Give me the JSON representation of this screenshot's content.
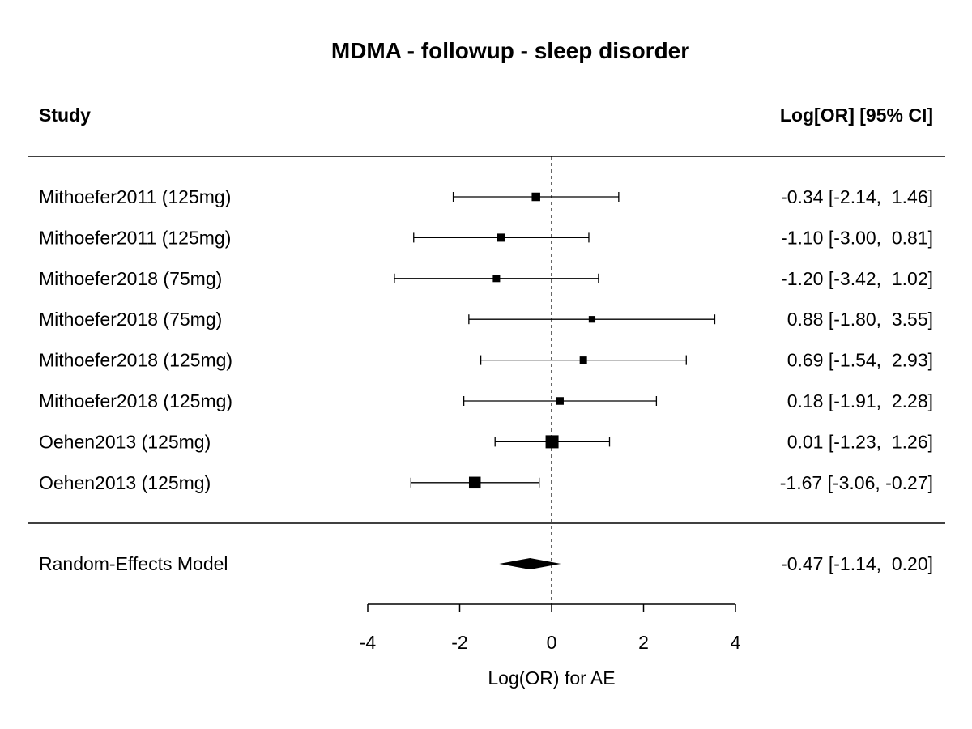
{
  "chart_data": {
    "type": "forest",
    "title": "MDMA - followup - sleep disorder",
    "left_header": "Study",
    "right_header": "Log[OR] [95% CI]",
    "xlabel": "Log(OR) for AE",
    "xticks": [
      -4,
      -2,
      0,
      2,
      4
    ],
    "xlim": [
      -4,
      4
    ],
    "reference_line": 0,
    "studies": [
      {
        "label": "Mithoefer2011 (125mg)",
        "estimate": -0.34,
        "lower": -2.14,
        "upper": 1.46,
        "ci_text": "-0.34 [-2.14,  1.46]",
        "weight": 0.45
      },
      {
        "label": "Mithoefer2011 (125mg)",
        "estimate": -1.1,
        "lower": -3.0,
        "upper": 0.81,
        "ci_text": "-1.10 [-3.00,  0.81]",
        "weight": 0.4
      },
      {
        "label": "Mithoefer2018 (75mg)",
        "estimate": -1.2,
        "lower": -3.42,
        "upper": 1.02,
        "ci_text": "-1.20 [-3.42,  1.02]",
        "weight": 0.3
      },
      {
        "label": "Mithoefer2018 (75mg)",
        "estimate": 0.88,
        "lower": -1.8,
        "upper": 3.55,
        "ci_text": " 0.88 [-1.80,  3.55]",
        "weight": 0.22
      },
      {
        "label": "Mithoefer2018 (125mg)",
        "estimate": 0.69,
        "lower": -1.54,
        "upper": 2.93,
        "ci_text": " 0.69 [-1.54,  2.93]",
        "weight": 0.3
      },
      {
        "label": "Mithoefer2018 (125mg)",
        "estimate": 0.18,
        "lower": -1.91,
        "upper": 2.28,
        "ci_text": " 0.18 [-1.91,  2.28]",
        "weight": 0.35
      },
      {
        "label": "Oehen2013 (125mg)",
        "estimate": 0.01,
        "lower": -1.23,
        "upper": 1.26,
        "ci_text": " 0.01 [-1.23,  1.26]",
        "weight": 1.0
      },
      {
        "label": "Oehen2013 (125mg)",
        "estimate": -1.67,
        "lower": -3.06,
        "upper": -0.27,
        "ci_text": "-1.67 [-3.06, -0.27]",
        "weight": 0.85
      }
    ],
    "summary": {
      "label": "Random-Effects Model",
      "estimate": -0.47,
      "lower": -1.14,
      "upper": 0.2,
      "ci_text": "-0.47 [-1.14,  0.20]"
    }
  }
}
